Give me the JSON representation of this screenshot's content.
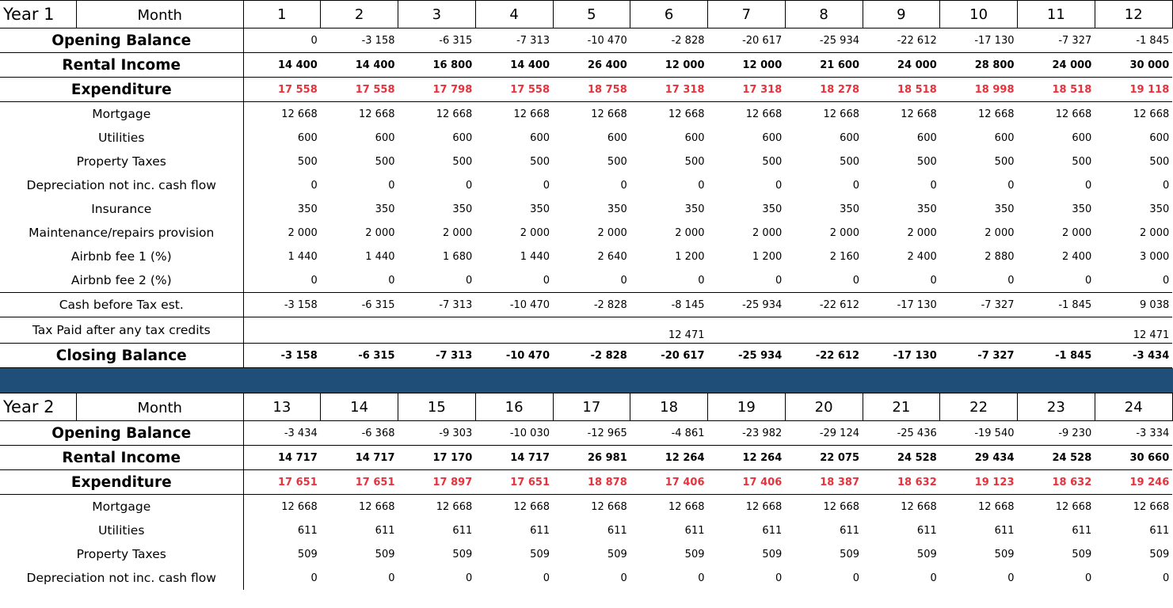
{
  "colors": {
    "band": "#1f4e78",
    "expenditure": "#e8323c"
  },
  "year1": {
    "year_label": "Year 1",
    "month_label": "Month",
    "months": [
      "1",
      "2",
      "3",
      "4",
      "5",
      "6",
      "7",
      "8",
      "9",
      "10",
      "11",
      "12"
    ],
    "rows": [
      {
        "label": "Opening Balance",
        "style": "bold-open",
        "values": [
          "0",
          "-3 158",
          "-6 315",
          "-7 313",
          "-10 470",
          "-2 828",
          "-20 617",
          "-25 934",
          "-22 612",
          "-17 130",
          "-7 327",
          "-1 845"
        ]
      },
      {
        "label": "Rental Income",
        "style": "bold",
        "values": [
          "14 400",
          "14 400",
          "16 800",
          "14 400",
          "26 400",
          "12 000",
          "12 000",
          "21 600",
          "24 000",
          "28 800",
          "24 000",
          "30 000"
        ]
      },
      {
        "label": "Expenditure",
        "style": "bold-red",
        "values": [
          "17 558",
          "17 558",
          "17 798",
          "17 558",
          "18 758",
          "17 318",
          "17 318",
          "18 278",
          "18 518",
          "18 998",
          "18 518",
          "19 118"
        ]
      },
      {
        "label": "Mortgage",
        "style": "plain",
        "values": [
          "12 668",
          "12 668",
          "12 668",
          "12 668",
          "12 668",
          "12 668",
          "12 668",
          "12 668",
          "12 668",
          "12 668",
          "12 668",
          "12 668"
        ]
      },
      {
        "label": "Utilities",
        "style": "plain",
        "values": [
          "600",
          "600",
          "600",
          "600",
          "600",
          "600",
          "600",
          "600",
          "600",
          "600",
          "600",
          "600"
        ]
      },
      {
        "label": "Property Taxes",
        "style": "plain",
        "values": [
          "500",
          "500",
          "500",
          "500",
          "500",
          "500",
          "500",
          "500",
          "500",
          "500",
          "500",
          "500"
        ]
      },
      {
        "label": "Depreciation not inc. cash flow",
        "style": "plain",
        "values": [
          "0",
          "0",
          "0",
          "0",
          "0",
          "0",
          "0",
          "0",
          "0",
          "0",
          "0",
          "0"
        ]
      },
      {
        "label": "Insurance",
        "style": "plain",
        "values": [
          "350",
          "350",
          "350",
          "350",
          "350",
          "350",
          "350",
          "350",
          "350",
          "350",
          "350",
          "350"
        ]
      },
      {
        "label": "Maintenance/repairs provision",
        "style": "plain",
        "values": [
          "2 000",
          "2 000",
          "2 000",
          "2 000",
          "2 000",
          "2 000",
          "2 000",
          "2 000",
          "2 000",
          "2 000",
          "2 000",
          "2 000"
        ]
      },
      {
        "label": "Airbnb fee 1 (%)",
        "style": "plain",
        "values": [
          "1 440",
          "1 440",
          "1 680",
          "1 440",
          "2 640",
          "1 200",
          "1 200",
          "2 160",
          "2 400",
          "2 880",
          "2 400",
          "3 000"
        ]
      },
      {
        "label": "Airbnb fee 2 (%)",
        "style": "plain-end",
        "values": [
          "0",
          "0",
          "0",
          "0",
          "0",
          "0",
          "0",
          "0",
          "0",
          "0",
          "0",
          "0"
        ]
      },
      {
        "label": "Cash before Tax est.",
        "style": "plain-line",
        "values": [
          "-3 158",
          "-6 315",
          "-7 313",
          "-10 470",
          "-2 828",
          "-8 145",
          "-25 934",
          "-22 612",
          "-17 130",
          "-7 327",
          "-1 845",
          "9 038"
        ]
      },
      {
        "label": "Tax Paid after any tax credits",
        "style": "plain-line",
        "values": [
          "",
          "",
          "",
          "",
          "",
          "12 471",
          "",
          "",
          "",
          "",
          "",
          "12 471"
        ]
      },
      {
        "label": "Closing Balance",
        "style": "bold-close",
        "values": [
          "-3 158",
          "-6 315",
          "-7 313",
          "-10 470",
          "-2 828",
          "-20 617",
          "-25 934",
          "-22 612",
          "-17 130",
          "-7 327",
          "-1 845",
          "-3 434"
        ]
      }
    ]
  },
  "year2": {
    "year_label": "Year 2",
    "month_label": "Month",
    "months": [
      "13",
      "14",
      "15",
      "16",
      "17",
      "18",
      "19",
      "20",
      "21",
      "22",
      "23",
      "24"
    ],
    "rows": [
      {
        "label": "Opening Balance",
        "style": "bold-open",
        "values": [
          "-3 434",
          "-6 368",
          "-9 303",
          "-10 030",
          "-12 965",
          "-4 861",
          "-23 982",
          "-29 124",
          "-25 436",
          "-19 540",
          "-9 230",
          "-3 334"
        ]
      },
      {
        "label": "Rental Income",
        "style": "bold",
        "values": [
          "14 717",
          "14 717",
          "17 170",
          "14 717",
          "26 981",
          "12 264",
          "12 264",
          "22 075",
          "24 528",
          "29 434",
          "24 528",
          "30 660"
        ]
      },
      {
        "label": "Expenditure",
        "style": "bold-red",
        "values": [
          "17 651",
          "17 651",
          "17 897",
          "17 651",
          "18 878",
          "17 406",
          "17 406",
          "18 387",
          "18 632",
          "19 123",
          "18 632",
          "19 246"
        ]
      },
      {
        "label": "Mortgage",
        "style": "plain",
        "values": [
          "12 668",
          "12 668",
          "12 668",
          "12 668",
          "12 668",
          "12 668",
          "12 668",
          "12 668",
          "12 668",
          "12 668",
          "12 668",
          "12 668"
        ]
      },
      {
        "label": "Utilities",
        "style": "plain",
        "values": [
          "611",
          "611",
          "611",
          "611",
          "611",
          "611",
          "611",
          "611",
          "611",
          "611",
          "611",
          "611"
        ]
      },
      {
        "label": "Property Taxes",
        "style": "plain",
        "values": [
          "509",
          "509",
          "509",
          "509",
          "509",
          "509",
          "509",
          "509",
          "509",
          "509",
          "509",
          "509"
        ]
      },
      {
        "label": "Depreciation not inc. cash flow",
        "style": "plain",
        "values": [
          "0",
          "0",
          "0",
          "0",
          "0",
          "0",
          "0",
          "0",
          "0",
          "0",
          "0",
          "0"
        ]
      }
    ]
  }
}
